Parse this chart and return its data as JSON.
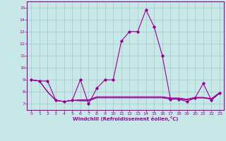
{
  "xlabel": "Windchill (Refroidissement éolien,°C)",
  "hours": [
    0,
    1,
    2,
    3,
    4,
    5,
    6,
    7,
    8,
    9,
    10,
    11,
    12,
    13,
    14,
    15,
    16,
    17,
    18,
    19,
    20,
    21,
    22,
    23
  ],
  "main_line": [
    9.0,
    8.9,
    8.9,
    7.3,
    7.2,
    7.3,
    9.0,
    7.0,
    8.3,
    9.0,
    9.0,
    12.2,
    13.0,
    13.0,
    14.8,
    13.4,
    11.0,
    7.4,
    7.4,
    7.2,
    7.5,
    8.7,
    7.3,
    7.9
  ],
  "flat_a": [
    9.0,
    8.9,
    8.0,
    7.3,
    7.2,
    7.3,
    7.25,
    7.25,
    7.5,
    7.5,
    7.5,
    7.5,
    7.5,
    7.5,
    7.5,
    7.5,
    7.5,
    7.4,
    7.4,
    7.35,
    7.5,
    7.5,
    7.4,
    7.9
  ],
  "flat_b": [
    9.0,
    8.9,
    8.0,
    7.3,
    7.2,
    7.3,
    7.3,
    7.3,
    7.55,
    7.55,
    7.55,
    7.55,
    7.55,
    7.55,
    7.55,
    7.55,
    7.55,
    7.45,
    7.45,
    7.35,
    7.5,
    7.5,
    7.4,
    7.9
  ],
  "flat_c": [
    9.0,
    8.9,
    8.0,
    7.3,
    7.2,
    7.3,
    7.35,
    7.35,
    7.6,
    7.6,
    7.6,
    7.6,
    7.6,
    7.6,
    7.6,
    7.6,
    7.6,
    7.5,
    7.5,
    7.4,
    7.55,
    7.55,
    7.45,
    7.95
  ],
  "ylim": [
    6.5,
    15.5
  ],
  "xlim": [
    -0.5,
    23.5
  ],
  "yticks": [
    7,
    8,
    9,
    10,
    11,
    12,
    13,
    14,
    15
  ],
  "xticks": [
    0,
    1,
    2,
    3,
    4,
    5,
    6,
    7,
    8,
    9,
    10,
    11,
    12,
    13,
    14,
    15,
    16,
    17,
    18,
    19,
    20,
    21,
    22,
    23
  ],
  "line_color": "#990099",
  "bg_color": "#c8e8e8",
  "grid_color": "#a0c8c8"
}
